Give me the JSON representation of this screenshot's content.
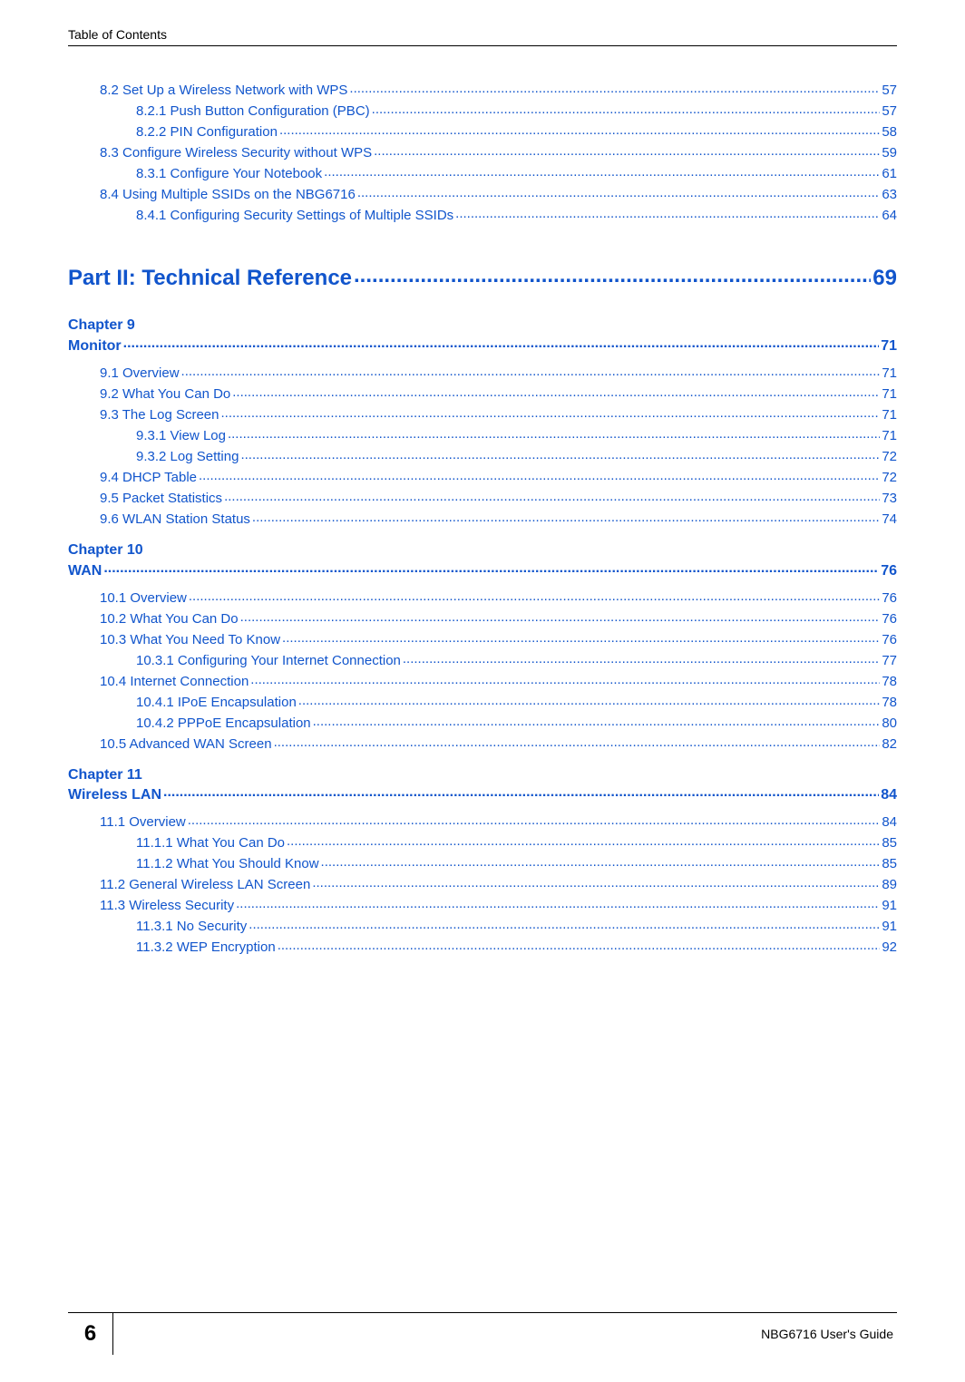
{
  "header": "Table of Contents",
  "entries_top": [
    {
      "lvl": 0,
      "label": "8.2 Set Up a Wireless Network with WPS ",
      "page": "57"
    },
    {
      "lvl": 1,
      "label": "8.2.1 Push Button Configuration (PBC) ",
      "page": "57"
    },
    {
      "lvl": 1,
      "label": "8.2.2 PIN Configuration  ",
      "page": "58"
    },
    {
      "lvl": 0,
      "label": "8.3 Configure Wireless Security without WPS  ",
      "page": "59"
    },
    {
      "lvl": 1,
      "label": "8.3.1 Configure Your Notebook  ",
      "page": "61"
    },
    {
      "lvl": 0,
      "label": "8.4 Using Multiple SSIDs on the NBG6716 ",
      "page": "63"
    },
    {
      "lvl": 1,
      "label": "8.4.1 Configuring Security Settings of Multiple SSIDs ",
      "page": "64"
    }
  ],
  "part": {
    "label": "Part II: Technical Reference",
    "page": "69"
  },
  "chapters": [
    {
      "num": "Chapter   9",
      "title": "Monitor",
      "page": "71",
      "entries": [
        {
          "lvl": 0,
          "label": "9.1 Overview  ",
          "page": "71"
        },
        {
          "lvl": 0,
          "label": "9.2 What You Can Do  ",
          "page": "71"
        },
        {
          "lvl": 0,
          "label": "9.3 The Log Screen ",
          "page": "71"
        },
        {
          "lvl": 1,
          "label": "9.3.1 View Log ",
          "page": "71"
        },
        {
          "lvl": 1,
          "label": "9.3.2 Log Setting  ",
          "page": "72"
        },
        {
          "lvl": 0,
          "label": "9.4 DHCP Table     ",
          "page": "72"
        },
        {
          "lvl": 0,
          "label": "9.5 Packet Statistics    ",
          "page": "73"
        },
        {
          "lvl": 0,
          "label": "9.6 WLAN Station Status     ",
          "page": "74"
        }
      ]
    },
    {
      "num": "Chapter   10",
      "title": "WAN ",
      "page": "76",
      "entries": [
        {
          "lvl": 0,
          "label": "10.1 Overview  ",
          "page": "76"
        },
        {
          "lvl": 0,
          "label": "10.2 What You Can Do  ",
          "page": "76"
        },
        {
          "lvl": 0,
          "label": "10.3 What You Need To Know  ",
          "page": "76"
        },
        {
          "lvl": 1,
          "label": "10.3.1 Configuring Your Internet Connection ",
          "page": "77"
        },
        {
          "lvl": 0,
          "label": "10.4 Internet Connection ",
          "page": "78"
        },
        {
          "lvl": 1,
          "label": "10.4.1 IPoE Encapsulation  ",
          "page": "78"
        },
        {
          "lvl": 1,
          "label": "10.4.2 PPPoE Encapsulation  ",
          "page": "80"
        },
        {
          "lvl": 0,
          "label": "10.5 Advanced WAN Screen  ",
          "page": "82"
        }
      ]
    },
    {
      "num": "Chapter   11",
      "title": "Wireless LAN",
      "page": "84",
      "entries": [
        {
          "lvl": 0,
          "label": "11.1 Overview  ",
          "page": "84"
        },
        {
          "lvl": 1,
          "label": "11.1.1 What You Can Do  ",
          "page": "85"
        },
        {
          "lvl": 1,
          "label": "11.1.2 What You Should Know  ",
          "page": "85"
        },
        {
          "lvl": 0,
          "label": "11.2 General Wireless LAN Screen   ",
          "page": "89"
        },
        {
          "lvl": 0,
          "label": "11.3 Wireless Security ",
          "page": "91"
        },
        {
          "lvl": 1,
          "label": "11.3.1 No Security  ",
          "page": "91"
        },
        {
          "lvl": 1,
          "label": "11.3.2 WEP Encryption ",
          "page": "92"
        }
      ]
    }
  ],
  "footer": {
    "pageNumber": "6",
    "guide": "NBG6716 User's Guide"
  },
  "colors": {
    "link": "#1155cc",
    "text": "#000000",
    "background": "#ffffff"
  }
}
